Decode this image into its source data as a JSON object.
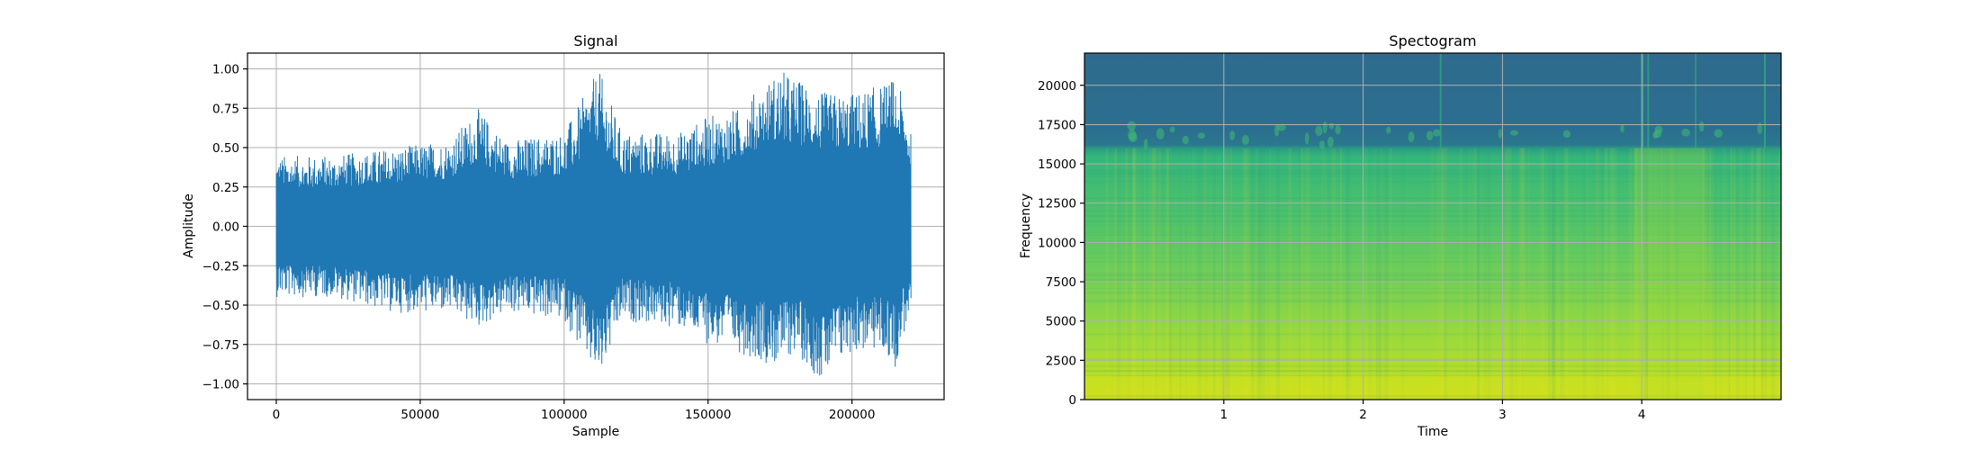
{
  "chart_data": [
    {
      "type": "line",
      "title": "Signal",
      "xlabel": "Sample",
      "ylabel": "Amplitude",
      "xlim": [
        -10000,
        232000
      ],
      "ylim": [
        -1.1,
        1.1
      ],
      "grid": true,
      "line_color": "#1f77b4",
      "x_ticks": [
        0,
        50000,
        100000,
        150000,
        200000
      ],
      "x_tick_labels": [
        "0",
        "50000",
        "100000",
        "150000",
        "200000"
      ],
      "y_ticks": [
        -1.0,
        -0.75,
        -0.5,
        -0.25,
        0.0,
        0.25,
        0.5,
        0.75,
        1.0
      ],
      "y_tick_labels": [
        "−1.00",
        "−0.75",
        "−0.50",
        "−0.25",
        "0.00",
        "0.25",
        "0.50",
        "0.75",
        "1.00"
      ],
      "samples": 220500,
      "envelope": {
        "x": [
          0,
          20000,
          40000,
          60000,
          70000,
          80000,
          100000,
          112000,
          120000,
          140000,
          150000,
          160000,
          175000,
          180000,
          190000,
          200000,
          210000,
          215000,
          220000
        ],
        "upper": [
          0.45,
          0.45,
          0.5,
          0.55,
          0.75,
          0.55,
          0.6,
          1.0,
          0.6,
          0.6,
          0.7,
          0.75,
          1.0,
          0.95,
          0.85,
          0.85,
          0.9,
          0.95,
          0.7
        ],
        "lower": [
          -0.45,
          -0.45,
          -0.55,
          -0.55,
          -0.65,
          -0.55,
          -0.6,
          -1.0,
          -0.6,
          -0.65,
          -0.75,
          -0.8,
          -0.9,
          -0.8,
          -1.0,
          -0.8,
          -0.8,
          -0.9,
          -0.55
        ]
      }
    },
    {
      "type": "heatmap",
      "title": "Spectogram",
      "xlabel": "Time",
      "ylabel": "Frequency",
      "xlim": [
        0,
        5.0
      ],
      "ylim": [
        0,
        22050
      ],
      "grid": true,
      "colormap": "viridis",
      "x_ticks": [
        1,
        2,
        3,
        4
      ],
      "x_tick_labels": [
        "1",
        "2",
        "3",
        "4"
      ],
      "y_ticks": [
        0,
        2500,
        5000,
        7500,
        10000,
        12500,
        15000,
        17500,
        20000
      ],
      "y_tick_labels": [
        "0",
        "2500",
        "5000",
        "7500",
        "10000",
        "12500",
        "15000",
        "17500",
        "20000"
      ],
      "cutoff_frequency": 16000
    }
  ]
}
